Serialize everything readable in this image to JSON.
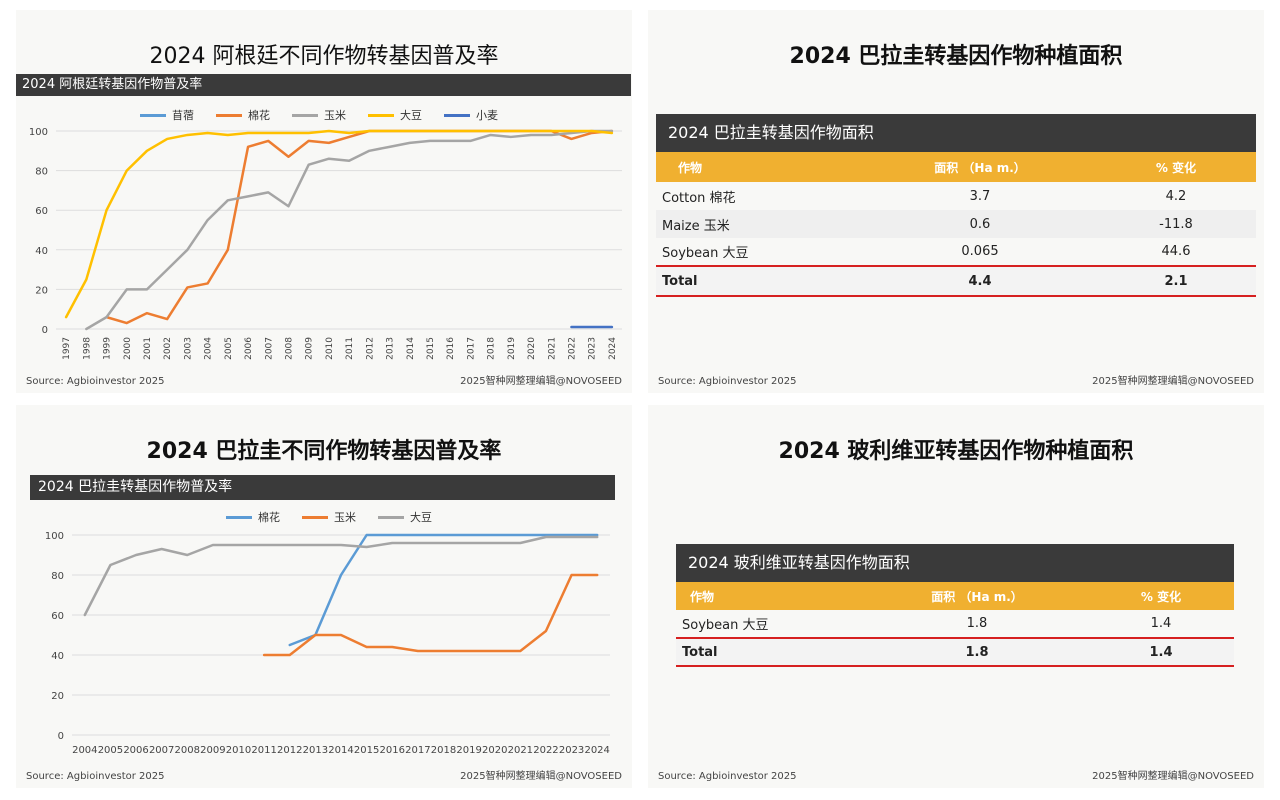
{
  "panels": {
    "argentina": {
      "title": "2024 阿根廷不同作物转基因普及率",
      "bar": "2024 阿根廷转基因作物普及率",
      "source": "Source: Agbioinvestor 2025",
      "credit": "2025智种网整理编辑@NOVOSEED"
    },
    "paraguay_area": {
      "title": "2024 巴拉圭转基因作物种植面积",
      "bar": "2024 巴拉圭转基因作物面积",
      "headers": [
        "作物",
        "面积 （Ha m.）",
        "% 变化"
      ],
      "rows": [
        {
          "crop": "Cotton  棉花",
          "area": "3.7",
          "change": "4.2"
        },
        {
          "crop": "Maize  玉米",
          "area": "0.6",
          "change": "-11.8"
        },
        {
          "crop": "Soybean  大豆",
          "area": "0.065",
          "change": "44.6"
        }
      ],
      "total": {
        "crop": "Total",
        "area": "4.4",
        "change": "2.1"
      },
      "source": "Source: Agbioinvestor 2025",
      "credit": "2025智种网整理编辑@NOVOSEED"
    },
    "paraguay": {
      "title": "2024 巴拉圭不同作物转基因普及率",
      "bar": "2024 巴拉圭转基因作物普及率",
      "source": "Source: Agbioinvestor 2025",
      "credit": "2025智种网整理编辑@NOVOSEED"
    },
    "bolivia_area": {
      "title": "2024 玻利维亚转基因作物种植面积",
      "bar": "2024 玻利维亚转基因作物面积",
      "headers": [
        "作物",
        "面积 （Ha m.）",
        "% 变化"
      ],
      "rows": [
        {
          "crop": "Soybean  大豆",
          "area": "1.8",
          "change": "1.4"
        }
      ],
      "total": {
        "crop": "Total",
        "area": "1.8",
        "change": "1.4"
      },
      "source": "Source: Agbioinvestor 2025",
      "credit": "2025智种网整理编辑@NOVOSEED"
    }
  },
  "colors": {
    "blue": "#5b9bd5",
    "orange": "#ed7d31",
    "gray": "#a5a5a5",
    "yellow": "#ffc000",
    "navy": "#4472c4"
  },
  "chart_data": [
    {
      "type": "line",
      "title": "2024 阿根廷转基因作物普及率",
      "x": [
        1997,
        1998,
        1999,
        2000,
        2001,
        2002,
        2003,
        2004,
        2005,
        2006,
        2007,
        2008,
        2009,
        2010,
        2011,
        2012,
        2013,
        2014,
        2015,
        2016,
        2017,
        2018,
        2019,
        2020,
        2021,
        2022,
        2023,
        2024
      ],
      "ylim": [
        0,
        100
      ],
      "yticks": [
        0,
        20,
        40,
        60,
        80,
        100
      ],
      "legend": "top",
      "series": [
        {
          "name": "苜蓿",
          "color": "#5b9bd5",
          "values": [
            null,
            null,
            null,
            null,
            null,
            null,
            null,
            null,
            null,
            null,
            null,
            null,
            null,
            null,
            null,
            null,
            null,
            null,
            null,
            null,
            null,
            null,
            null,
            null,
            null,
            null,
            null,
            null
          ]
        },
        {
          "name": "棉花",
          "color": "#ed7d31",
          "values": [
            null,
            null,
            6,
            3,
            8,
            5,
            21,
            23,
            40,
            92,
            95,
            87,
            95,
            94,
            97,
            100,
            100,
            100,
            100,
            100,
            100,
            100,
            100,
            100,
            100,
            96,
            99,
            100
          ]
        },
        {
          "name": "玉米",
          "color": "#a5a5a5",
          "values": [
            null,
            0,
            6,
            20,
            20,
            30,
            40,
            55,
            65,
            67,
            69,
            62,
            83,
            86,
            85,
            90,
            92,
            94,
            95,
            95,
            95,
            98,
            97,
            98,
            98,
            99,
            100,
            100
          ]
        },
        {
          "name": "大豆",
          "color": "#ffc000",
          "values": [
            6,
            25,
            60,
            80,
            90,
            96,
            98,
            99,
            98,
            99,
            99,
            99,
            99,
            100,
            99,
            100,
            100,
            100,
            100,
            100,
            100,
            100,
            100,
            100,
            100,
            100,
            100,
            99
          ]
        },
        {
          "name": "小麦",
          "color": "#4472c4",
          "values": [
            null,
            null,
            null,
            null,
            null,
            null,
            null,
            null,
            null,
            null,
            null,
            null,
            null,
            null,
            null,
            null,
            null,
            null,
            null,
            null,
            null,
            null,
            null,
            null,
            null,
            1,
            1,
            1
          ]
        }
      ]
    },
    {
      "type": "line",
      "title": "2024 巴拉圭转基因作物普及率",
      "x": [
        2004,
        2005,
        2006,
        2007,
        2008,
        2009,
        2010,
        2011,
        2012,
        2013,
        2014,
        2015,
        2016,
        2017,
        2018,
        2019,
        2020,
        2021,
        2022,
        2023,
        2024
      ],
      "ylim": [
        0,
        100
      ],
      "yticks": [
        0,
        20,
        40,
        60,
        80,
        100
      ],
      "legend": "top",
      "series": [
        {
          "name": "棉花",
          "color": "#5b9bd5",
          "values": [
            null,
            null,
            null,
            null,
            null,
            null,
            null,
            null,
            45,
            50,
            80,
            100,
            100,
            100,
            100,
            100,
            100,
            100,
            100,
            100,
            100
          ]
        },
        {
          "name": "玉米",
          "color": "#ed7d31",
          "values": [
            null,
            null,
            null,
            null,
            null,
            null,
            null,
            40,
            40,
            50,
            50,
            44,
            44,
            42,
            42,
            42,
            42,
            42,
            52,
            80,
            80
          ]
        },
        {
          "name": "大豆",
          "color": "#a5a5a5",
          "values": [
            60,
            85,
            90,
            93,
            90,
            95,
            95,
            95,
            95,
            95,
            95,
            94,
            96,
            96,
            96,
            96,
            96,
            96,
            99,
            99,
            99
          ]
        }
      ]
    }
  ]
}
